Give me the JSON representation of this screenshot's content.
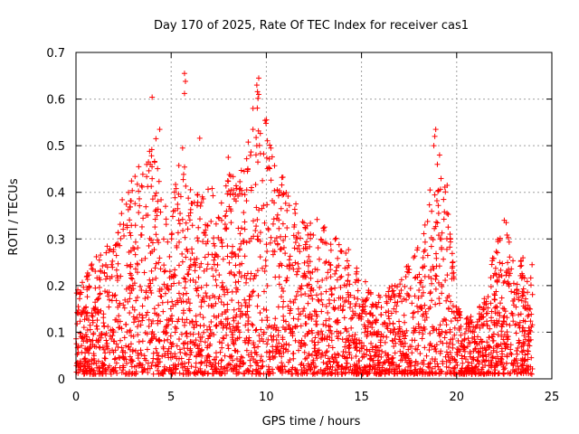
{
  "chart_data": {
    "type": "scatter",
    "title": "Day 170 of 2025, Rate Of TEC Index for receiver cas1",
    "xlabel": "GPS time / hours",
    "ylabel": "ROTI / TECUs",
    "xlim": [
      0,
      25
    ],
    "ylim": [
      0,
      0.7
    ],
    "x_ticks": [
      0,
      5,
      10,
      15,
      20,
      25
    ],
    "y_ticks": [
      0,
      0.1,
      0.2,
      0.3,
      0.4,
      0.5,
      0.6,
      0.7
    ],
    "grid": true,
    "marker": "+",
    "color": "#ff0000",
    "envelope": {
      "description": "upper envelope of dense ROTI scatter (hour, approx max ROTI)",
      "x": [
        0,
        0.5,
        1,
        1.5,
        2,
        2.5,
        3,
        3.5,
        4,
        4.5,
        5,
        5.5,
        6,
        6.5,
        7,
        7.5,
        8,
        8.5,
        9,
        9.5,
        10,
        10.5,
        11,
        11.5,
        12,
        12.5,
        13,
        13.5,
        14,
        14.5,
        15,
        15.5,
        16,
        16.5,
        17,
        17.5,
        18,
        18.5,
        19,
        19.5,
        20,
        20.5,
        21,
        21.5,
        22,
        22.5,
        23,
        23.5,
        24
      ],
      "y": [
        0.19,
        0.22,
        0.26,
        0.28,
        0.3,
        0.42,
        0.44,
        0.47,
        0.52,
        0.4,
        0.36,
        0.5,
        0.41,
        0.4,
        0.42,
        0.38,
        0.45,
        0.42,
        0.5,
        0.62,
        0.58,
        0.44,
        0.45,
        0.38,
        0.34,
        0.35,
        0.33,
        0.3,
        0.31,
        0.26,
        0.22,
        0.2,
        0.18,
        0.2,
        0.22,
        0.25,
        0.3,
        0.37,
        0.52,
        0.4,
        0.16,
        0.13,
        0.14,
        0.2,
        0.28,
        0.34,
        0.26,
        0.26,
        0.25
      ]
    },
    "outliers": [
      {
        "x": 4.0,
        "y": 0.604
      },
      {
        "x": 4.4,
        "y": 0.535
      },
      {
        "x": 4.2,
        "y": 0.515
      },
      {
        "x": 5.7,
        "y": 0.655
      },
      {
        "x": 5.75,
        "y": 0.638
      },
      {
        "x": 5.7,
        "y": 0.612
      },
      {
        "x": 5.6,
        "y": 0.495
      },
      {
        "x": 6.5,
        "y": 0.516
      },
      {
        "x": 9.6,
        "y": 0.645
      },
      {
        "x": 9.5,
        "y": 0.63
      },
      {
        "x": 9.6,
        "y": 0.61
      },
      {
        "x": 9.3,
        "y": 0.58
      },
      {
        "x": 9.3,
        "y": 0.535
      },
      {
        "x": 9.5,
        "y": 0.5
      },
      {
        "x": 8.0,
        "y": 0.475
      },
      {
        "x": 18.9,
        "y": 0.535
      },
      {
        "x": 18.85,
        "y": 0.52
      },
      {
        "x": 18.8,
        "y": 0.5
      },
      {
        "x": 19.1,
        "y": 0.48
      },
      {
        "x": 19.5,
        "y": 0.415
      },
      {
        "x": 18.6,
        "y": 0.405
      },
      {
        "x": 22.6,
        "y": 0.335
      },
      {
        "x": 22.5,
        "y": 0.34
      }
    ]
  }
}
